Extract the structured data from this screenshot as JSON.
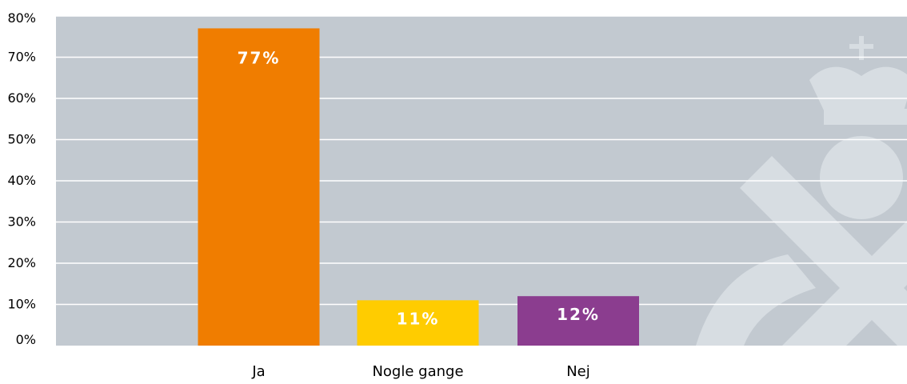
{
  "chart_data": {
    "type": "bar",
    "categories": [
      "Ja",
      "Nogle gange",
      "Nej"
    ],
    "values": [
      77,
      11,
      12
    ],
    "value_labels": [
      "77%",
      "11%",
      "12%"
    ],
    "y_ticks": [
      0,
      10,
      20,
      30,
      40,
      50,
      60,
      70,
      80
    ],
    "y_tick_labels": [
      "0%",
      "10%",
      "20%",
      "30%",
      "40%",
      "50%",
      "60%",
      "70%",
      "80%"
    ],
    "ylim": [
      0,
      80
    ],
    "grid": true,
    "legend": "none",
    "colors": {
      "plot_background": "#c2c9d0",
      "gridline": "#ffffff",
      "bars": [
        "#f07d00",
        "#ffcc00",
        "#8b3d8f"
      ],
      "value_label": "#ffffff",
      "axis_text": "#000000",
      "watermark": "#d7dde2"
    },
    "watermark_icon": "crown-emblem-watermark"
  }
}
